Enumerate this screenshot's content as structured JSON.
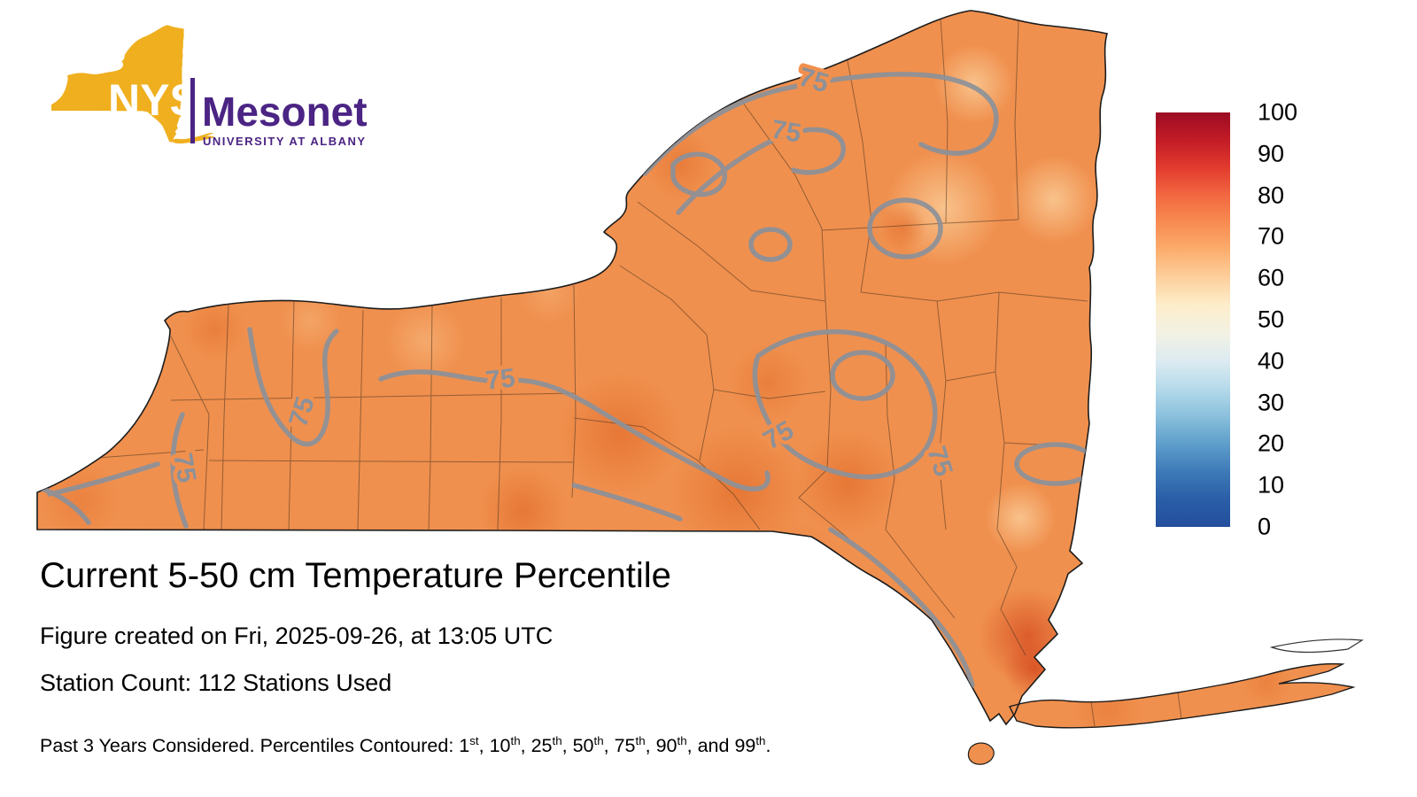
{
  "logo": {
    "acronym": "NYS",
    "name": "Mesonet",
    "subtitle": "UNIVERSITY AT ALBANY",
    "gold": "#EFAF1F",
    "purple": "#4B2484"
  },
  "map": {
    "region": "New York State",
    "base_color": "#F0904E",
    "contour_label": "75",
    "contour_color": "#8C9199"
  },
  "colorbar": {
    "tick_labels": [
      "100",
      "90",
      "80",
      "70",
      "60",
      "50",
      "40",
      "30",
      "20",
      "10",
      "0"
    ],
    "gradient_top_to_bottom": [
      "#9C0C23",
      "#C31C27",
      "#E23B2E",
      "#F26841",
      "#F78C51",
      "#FCAE6E",
      "#FDD09E",
      "#FDEECB",
      "#F2F1E4",
      "#DCEBF1",
      "#B5DAEA",
      "#8AC0DC",
      "#5E9ECB",
      "#3D7AB7",
      "#2A5EA7",
      "#234E9D"
    ]
  },
  "title": "Current 5-50 cm Temperature Percentile",
  "meta": {
    "created": "Figure created on Fri, 2025-09-26, at 13:05 UTC",
    "stations": "Station Count: 112 Stations Used"
  },
  "footer": {
    "prefix": "Past 3 Years Considered. Percentiles Contoured: ",
    "percentiles": [
      {
        "value": "1",
        "ordinal": "st",
        "separator": ", "
      },
      {
        "value": "10",
        "ordinal": "th",
        "separator": ", "
      },
      {
        "value": "25",
        "ordinal": "th",
        "separator": ", "
      },
      {
        "value": "50",
        "ordinal": "th",
        "separator": ", "
      },
      {
        "value": "75",
        "ordinal": "th",
        "separator": ", "
      },
      {
        "value": "90",
        "ordinal": "th",
        "separator": ", and "
      },
      {
        "value": "99",
        "ordinal": "th",
        "separator": "."
      }
    ]
  }
}
